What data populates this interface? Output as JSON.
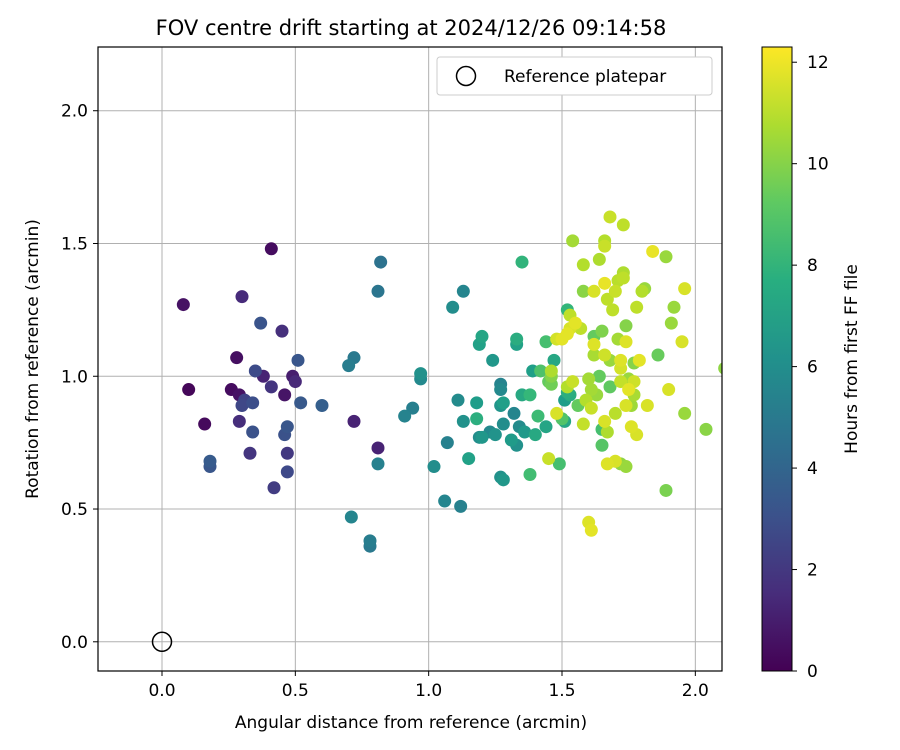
{
  "chart_data": {
    "type": "scatter",
    "title": "FOV centre drift starting at 2024/12/26 09:14:58",
    "xlabel": "Angular distance from reference (arcmin)",
    "ylabel": "Rotation from reference (arcmin)",
    "xlim": [
      -0.24,
      2.1
    ],
    "ylim": [
      -0.11,
      2.24
    ],
    "x_ticks": [
      "0.0",
      "0.5",
      "1.0",
      "1.5",
      "2.0"
    ],
    "x_tick_values": [
      0,
      0.5,
      1,
      1.5,
      2
    ],
    "y_ticks": [
      "0.0",
      "0.5",
      "1.0",
      "1.5",
      "2.0"
    ],
    "y_tick_values": [
      0,
      0.5,
      1,
      1.5,
      2
    ],
    "grid": true,
    "legend": {
      "placement": "top-right",
      "label": "Reference platepar"
    },
    "reference_point": {
      "x": 0.0,
      "y": 0.0
    },
    "colorbar": {
      "label": "Hours from first FF file",
      "colormap": "viridis",
      "range": [
        0,
        12.3
      ],
      "ticks": [
        "0",
        "2",
        "4",
        "6",
        "8",
        "10",
        "12"
      ],
      "tick_values": [
        0,
        2,
        4,
        6,
        8,
        10,
        12
      ]
    },
    "points": [
      [
        0.08,
        1.27,
        0.6
      ],
      [
        0.1,
        0.95,
        0.2
      ],
      [
        0.16,
        0.82,
        0.3
      ],
      [
        0.26,
        0.95,
        0.4
      ],
      [
        0.28,
        1.07,
        0.5
      ],
      [
        0.29,
        0.93,
        0.6
      ],
      [
        0.3,
        1.3,
        1.5
      ],
      [
        0.29,
        0.83,
        1.6
      ],
      [
        0.3,
        0.89,
        2.6
      ],
      [
        0.31,
        0.91,
        2.4
      ],
      [
        0.33,
        0.71,
        1.9
      ],
      [
        0.34,
        0.9,
        2.9
      ],
      [
        0.34,
        0.79,
        3.1
      ],
      [
        0.35,
        1.02,
        2.8
      ],
      [
        0.37,
        1.2,
        3.2
      ],
      [
        0.38,
        1.0,
        1.2
      ],
      [
        0.41,
        0.96,
        1.9
      ],
      [
        0.41,
        1.48,
        0.4
      ],
      [
        0.42,
        0.58,
        2.2
      ],
      [
        0.45,
        1.17,
        1.7
      ],
      [
        0.46,
        0.93,
        0.7
      ],
      [
        0.46,
        0.78,
        3.1
      ],
      [
        0.47,
        0.81,
        3.3
      ],
      [
        0.47,
        0.64,
        2.7
      ],
      [
        0.47,
        0.71,
        2.0
      ],
      [
        0.49,
        1.0,
        1.0
      ],
      [
        0.5,
        0.98,
        1.4
      ],
      [
        0.51,
        1.06,
        3.3
      ],
      [
        0.52,
        0.9,
        3.4
      ],
      [
        0.18,
        0.68,
        3.5
      ],
      [
        0.18,
        0.66,
        3.3
      ],
      [
        0.6,
        0.89,
        3.7
      ],
      [
        0.7,
        1.04,
        5.2
      ],
      [
        0.72,
        1.07,
        5.0
      ],
      [
        0.71,
        0.47,
        5.6
      ],
      [
        0.72,
        0.83,
        1.2
      ],
      [
        0.78,
        0.38,
        5.2
      ],
      [
        0.78,
        0.36,
        5.0
      ],
      [
        0.81,
        0.73,
        1.2
      ],
      [
        0.81,
        1.32,
        4.8
      ],
      [
        0.82,
        1.43,
        4.6
      ],
      [
        0.81,
        0.67,
        5.4
      ],
      [
        0.91,
        0.85,
        5.5
      ],
      [
        0.94,
        0.88,
        5.3
      ],
      [
        0.97,
        1.01,
        6.2
      ],
      [
        0.97,
        0.99,
        5.8
      ],
      [
        1.02,
        0.66,
        6.0
      ],
      [
        1.06,
        0.53,
        5.6
      ],
      [
        1.07,
        0.75,
        5.4
      ],
      [
        1.09,
        1.26,
        6.0
      ],
      [
        1.11,
        0.91,
        5.9
      ],
      [
        1.12,
        0.51,
        5.4
      ],
      [
        1.13,
        1.32,
        5.6
      ],
      [
        1.13,
        0.83,
        6.2
      ],
      [
        1.15,
        0.69,
        7.0
      ],
      [
        1.18,
        0.84,
        7.7
      ],
      [
        1.18,
        0.9,
        6.8
      ],
      [
        1.19,
        1.12,
        7.0
      ],
      [
        1.19,
        0.77,
        6.0
      ],
      [
        1.2,
        1.15,
        7.2
      ],
      [
        1.2,
        0.77,
        6.5
      ],
      [
        1.23,
        0.79,
        5.8
      ],
      [
        1.24,
        1.06,
        6.5
      ],
      [
        1.25,
        0.78,
        6.3
      ],
      [
        1.27,
        0.97,
        5.5
      ],
      [
        1.27,
        0.95,
        5.8
      ],
      [
        1.27,
        0.89,
        6.4
      ],
      [
        1.27,
        0.62,
        6.2
      ],
      [
        1.28,
        0.9,
        6.9
      ],
      [
        1.28,
        0.61,
        6.5
      ],
      [
        1.28,
        0.82,
        6.0
      ],
      [
        1.31,
        0.76,
        6.7
      ],
      [
        1.32,
        0.86,
        5.6
      ],
      [
        1.33,
        1.14,
        7.6
      ],
      [
        1.33,
        1.12,
        7.0
      ],
      [
        1.33,
        0.74,
        6.2
      ],
      [
        1.34,
        0.81,
        5.9
      ],
      [
        1.35,
        0.93,
        7.4
      ],
      [
        1.35,
        1.43,
        8.0
      ],
      [
        1.36,
        0.79,
        6.6
      ],
      [
        1.38,
        0.93,
        8.2
      ],
      [
        1.38,
        0.63,
        8.5
      ],
      [
        1.39,
        1.02,
        6.9
      ],
      [
        1.4,
        0.78,
        7.4
      ],
      [
        1.41,
        0.85,
        8.4
      ],
      [
        1.42,
        1.02,
        8.8
      ],
      [
        1.44,
        0.81,
        7.2
      ],
      [
        1.44,
        1.13,
        8.6
      ],
      [
        1.45,
        0.98,
        9.3
      ],
      [
        1.45,
        0.69,
        11.3
      ],
      [
        1.46,
        1.02,
        10.8
      ],
      [
        1.46,
        1.0,
        10.0
      ],
      [
        1.46,
        0.97,
        9.6
      ],
      [
        1.47,
        1.06,
        7.3
      ],
      [
        1.48,
        1.14,
        11.5
      ],
      [
        1.48,
        0.86,
        11.6
      ],
      [
        1.49,
        0.67,
        8.6
      ],
      [
        1.5,
        0.84,
        8.9
      ],
      [
        1.5,
        1.14,
        11.8
      ],
      [
        1.51,
        0.83,
        7.3
      ],
      [
        1.51,
        0.91,
        6.8
      ],
      [
        1.52,
        1.25,
        8.1
      ],
      [
        1.52,
        0.96,
        10.9
      ],
      [
        1.52,
        1.16,
        11.8
      ],
      [
        1.52,
        0.94,
        7.7
      ],
      [
        1.53,
        1.23,
        11.1
      ],
      [
        1.53,
        1.18,
        11.6
      ],
      [
        1.53,
        0.93,
        7.6
      ],
      [
        1.54,
        1.51,
        10.6
      ],
      [
        1.54,
        0.98,
        11.3
      ],
      [
        1.55,
        1.2,
        11.8
      ],
      [
        1.56,
        0.89,
        9.3
      ],
      [
        1.57,
        1.18,
        11.1
      ],
      [
        1.58,
        0.82,
        11.2
      ],
      [
        1.58,
        1.42,
        10.9
      ],
      [
        1.58,
        1.32,
        10.1
      ],
      [
        1.59,
        0.91,
        10.9
      ],
      [
        1.6,
        0.45,
        11.7
      ],
      [
        1.61,
        0.95,
        10.6
      ],
      [
        1.61,
        0.88,
        11.3
      ],
      [
        1.61,
        0.42,
        11.8
      ],
      [
        1.62,
        1.15,
        9.3
      ],
      [
        1.62,
        1.12,
        11.7
      ],
      [
        1.62,
        1.32,
        11.6
      ],
      [
        1.63,
        0.93,
        10.4
      ],
      [
        1.64,
        1.44,
        10.8
      ],
      [
        1.64,
        1.0,
        9.3
      ],
      [
        1.65,
        0.8,
        8.6
      ],
      [
        1.65,
        0.74,
        9.0
      ],
      [
        1.65,
        1.17,
        9.9
      ],
      [
        1.66,
        1.51,
        10.9
      ],
      [
        1.66,
        1.49,
        11.3
      ],
      [
        1.66,
        1.35,
        11.9
      ],
      [
        1.66,
        1.08,
        11.4
      ],
      [
        1.66,
        0.83,
        11.6
      ],
      [
        1.67,
        1.29,
        11.1
      ],
      [
        1.67,
        0.79,
        10.8
      ],
      [
        1.67,
        0.67,
        11.7
      ],
      [
        1.68,
        1.06,
        10.4
      ],
      [
        1.68,
        1.6,
        11.3
      ],
      [
        1.68,
        0.96,
        9.2
      ],
      [
        1.69,
        1.25,
        11.1
      ],
      [
        1.7,
        1.32,
        11.3
      ],
      [
        1.7,
        0.68,
        11.6
      ],
      [
        1.7,
        0.86,
        11.0
      ],
      [
        1.71,
        1.36,
        11.0
      ],
      [
        1.71,
        1.14,
        10.6
      ],
      [
        1.72,
        1.03,
        11.5
      ],
      [
        1.72,
        0.98,
        11.2
      ],
      [
        1.72,
        0.67,
        10.2
      ],
      [
        1.72,
        1.06,
        11.7
      ],
      [
        1.73,
        1.39,
        10.8
      ],
      [
        1.73,
        1.57,
        11.1
      ],
      [
        1.73,
        1.37,
        11.1
      ],
      [
        1.74,
        0.66,
        10.4
      ],
      [
        1.74,
        1.13,
        11.7
      ],
      [
        1.74,
        1.19,
        10.0
      ],
      [
        1.74,
        0.89,
        11.6
      ],
      [
        1.75,
        0.99,
        10.4
      ],
      [
        1.75,
        0.95,
        11.8
      ],
      [
        1.76,
        0.81,
        11.7
      ],
      [
        1.76,
        0.89,
        10.5
      ],
      [
        1.77,
        1.05,
        10.0
      ],
      [
        1.77,
        0.98,
        11.4
      ],
      [
        1.77,
        0.93,
        10.7
      ],
      [
        1.78,
        0.78,
        11.6
      ],
      [
        1.78,
        1.26,
        11.1
      ],
      [
        1.79,
        1.06,
        11.8
      ],
      [
        1.8,
        1.32,
        10.9
      ],
      [
        1.81,
        1.33,
        10.4
      ],
      [
        1.82,
        0.89,
        11.6
      ],
      [
        1.84,
        1.47,
        11.9
      ],
      [
        1.86,
        1.08,
        9.4
      ],
      [
        1.89,
        1.45,
        10.4
      ],
      [
        1.89,
        0.57,
        9.8
      ],
      [
        1.9,
        0.95,
        11.6
      ],
      [
        1.91,
        1.2,
        10.4
      ],
      [
        1.92,
        1.26,
        10.4
      ],
      [
        1.95,
        1.13,
        11.6
      ],
      [
        1.96,
        1.33,
        11.6
      ],
      [
        1.96,
        0.86,
        10.4
      ],
      [
        2.04,
        0.8,
        10.1
      ],
      [
        2.11,
        1.03,
        10.2
      ],
      [
        1.6,
        0.99,
        10.6
      ],
      [
        1.62,
        1.08,
        10.7
      ]
    ]
  }
}
